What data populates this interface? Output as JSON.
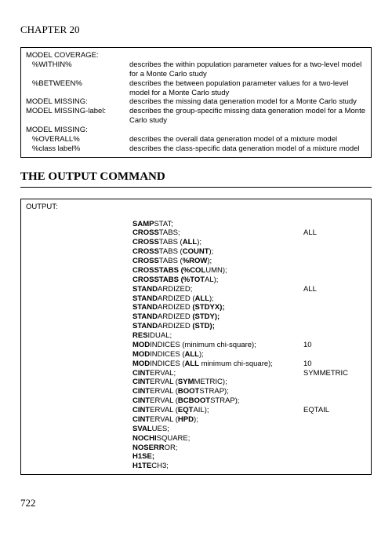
{
  "chapter": "CHAPTER 20",
  "page_number": "722",
  "section_heading": "THE OUTPUT COMMAND",
  "table1": {
    "header": "MODEL COVERAGE:",
    "rows": [
      {
        "indent": true,
        "label": "%WITHIN%",
        "desc": "describes the within population parameter values for  a two-level model for a Monte Carlo study"
      },
      {
        "indent": true,
        "label": "%BETWEEN%",
        "desc": "describes the between population parameter values for a two-level model for a Monte Carlo study"
      },
      {
        "indent": false,
        "label": "MODEL MISSING:",
        "desc": "describes the missing data generation model for a Monte Carlo study"
      },
      {
        "indent": false,
        "label": "MODEL MISSING-label:",
        "desc": "describes the group-specific missing data generation model for a Monte Carlo study"
      },
      {
        "indent": false,
        "label": "MODEL MISSING:",
        "desc": ""
      },
      {
        "indent": true,
        "label": "%OVERALL%",
        "desc": "describes the overall data generation model of a mixture model"
      },
      {
        "indent": true,
        "label": "%class label%",
        "desc": "describes the class-specific data generation model of a mixture model"
      }
    ]
  },
  "table2": {
    "header": "OUTPUT:",
    "rows": [
      {
        "bold": "SAMP",
        "rest": "STAT;",
        "right": ""
      },
      {
        "bold": "CROSS",
        "rest": "TABS;",
        "right": "ALL"
      },
      {
        "bold": "CROSS",
        "rest": "TABS (",
        "bold2": "ALL",
        "rest2": ");",
        "right": ""
      },
      {
        "bold": "CROSS",
        "rest": "TABS (",
        "bold2": "COUNT",
        "rest2": ");",
        "right": ""
      },
      {
        "bold": "CROSS",
        "rest": "TABS (",
        "bold2": "%ROW",
        "rest2": ");",
        "right": ""
      },
      {
        "bold": "CROSSTABS (%COL",
        "rest": "UMN);",
        "right": ""
      },
      {
        "bold": "CROSSTABS (%TOT",
        "rest": "AL);",
        "right": ""
      },
      {
        "bold": "STAND",
        "rest": "ARDIZED;",
        "right": "ALL"
      },
      {
        "bold": "STAND",
        "rest": "ARDIZED (",
        "bold2": "ALL",
        "rest2": ");",
        "right": ""
      },
      {
        "bold": "STAND",
        "rest": "ARDIZED ",
        "bold2": "(STDYX);",
        "rest2": "",
        "right": ""
      },
      {
        "bold": "STAND",
        "rest": "ARDIZED ",
        "bold2": "(STDY);",
        "rest2": "",
        "right": ""
      },
      {
        "bold": "STAND",
        "rest": "ARDIZED ",
        "bold2": "(STD);",
        "rest2": "",
        "right": ""
      },
      {
        "bold": "RES",
        "rest": "IDUAL;",
        "right": ""
      },
      {
        "bold": "MOD",
        "rest": "INDICES (minimum chi-square);",
        "right": "10"
      },
      {
        "bold": "MOD",
        "rest": "INDICES (",
        "bold2": "ALL",
        "rest2": ");",
        "right": ""
      },
      {
        "bold": "MOD",
        "rest": "INDICES (",
        "bold2": "ALL",
        "rest2": " minimum chi-square);",
        "right": "10"
      },
      {
        "bold": "CINT",
        "rest": "ERVAL;",
        "right": "SYMMETRIC"
      },
      {
        "bold": "CINT",
        "rest": "ERVAL (",
        "bold2": "SYM",
        "rest2": "METRIC);",
        "right": ""
      },
      {
        "bold": "CINT",
        "rest": "ERVAL (",
        "bold2": "BOOT",
        "rest2": "STRAP);",
        "right": ""
      },
      {
        "bold": "CINT",
        "rest": "ERVAL (",
        "bold2": "BCBOOT",
        "rest2": "STRAP);",
        "right": ""
      },
      {
        "bold": "CINT",
        "rest": "ERVAL (",
        "bold2": "EQT",
        "rest2": "AIL);",
        "right": "EQTAIL"
      },
      {
        "bold": "CINT",
        "rest": "ERVAL (",
        "bold2": "HPD",
        "rest2": ");",
        "right": ""
      },
      {
        "bold": "SVAL",
        "rest": "UES;",
        "right": ""
      },
      {
        "bold": "NOCHI",
        "rest": "SQUARE;",
        "right": ""
      },
      {
        "bold": "NOSERR",
        "rest": "OR;",
        "right": ""
      },
      {
        "bold": "H1SE;",
        "rest": "",
        "right": ""
      },
      {
        "bold": "H1TE",
        "rest": "CH3;",
        "right": ""
      }
    ]
  }
}
